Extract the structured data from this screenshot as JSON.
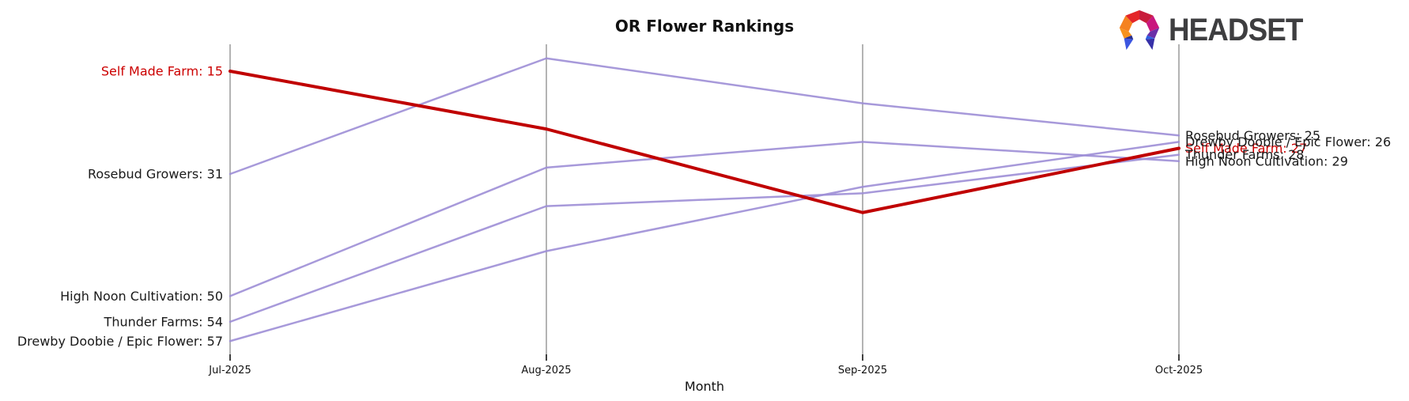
{
  "header": {
    "title": "OR Flower Rankings",
    "logo_text": "HEADSET"
  },
  "chart_data": {
    "type": "line",
    "subtype": "bump-ranking-chart",
    "title": "OR Flower Rankings",
    "xlabel": "Month",
    "ylabel": "",
    "x_categories": [
      "Jul-2025",
      "Aug-2025",
      "Sep-2025",
      "Oct-2025"
    ],
    "y_axis_inverted": true,
    "ylim": [
      13,
      57
    ],
    "grid": "vertical gridline at each month, no horizontal grid",
    "legend_position": "inline labels at both line ends",
    "series": [
      {
        "name": "Self Made Farm",
        "values": [
          15,
          24,
          37,
          27
        ],
        "color": "#c00000",
        "emphasis": true,
        "left_label": "Self Made Farm: 15",
        "right_label": "Self Made Farm: 27"
      },
      {
        "name": "Rosebud Growers",
        "values": [
          31,
          13,
          20,
          25
        ],
        "color": "#9d8ed6",
        "emphasis": false,
        "left_label": "Rosebud Growers: 31",
        "right_label": "Rosebud Growers: 25"
      },
      {
        "name": "High Noon Cultivation",
        "values": [
          50,
          30,
          26,
          29
        ],
        "color": "#9d8ed6",
        "emphasis": false,
        "left_label": "High Noon Cultivation: 50",
        "right_label": "High Noon Cultivation: 29"
      },
      {
        "name": "Thunder Farms",
        "values": [
          54,
          36,
          34,
          28
        ],
        "color": "#9d8ed6",
        "emphasis": false,
        "left_label": "Thunder Farms: 54",
        "right_label": "Thunder Farms: 28"
      },
      {
        "name": "Drewby Doobie / Epic Flower",
        "values": [
          57,
          43,
          33,
          26
        ],
        "color": "#9d8ed6",
        "emphasis": false,
        "left_label": "Drewby Doobie / Epic Flower: 57",
        "right_label": "Drewby Doobie / Epic Flower: 26"
      }
    ],
    "colors": {
      "highlight_line": "#c00000",
      "highlight_label": "#cc0000",
      "normal_line": "#9d8ed6",
      "normal_label": "#1a1a1a",
      "gridline": "#b3b3b3",
      "tick": "#000000"
    }
  }
}
